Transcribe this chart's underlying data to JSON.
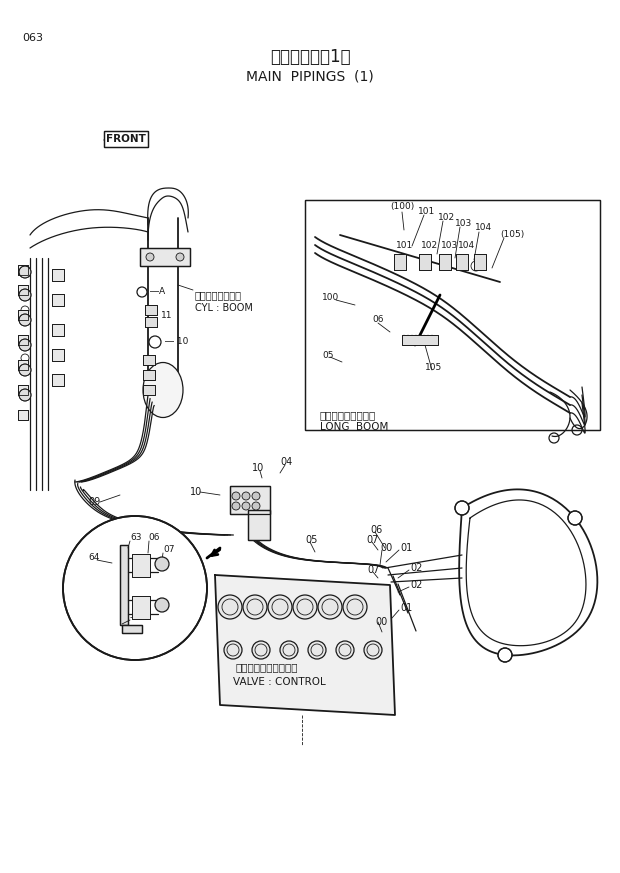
{
  "page_number": "063",
  "title_japanese": "メイン配管（1）",
  "title_english": "MAIN  PIPINGS  (1)",
  "front_label": "FRONT",
  "long_boom_japanese": "ロングブーム装着時",
  "long_boom_english": "LONG  BOOM",
  "cyl_boom_japanese": "シリンダ：ブーム",
  "cyl_boom_english": "CYL : BOOM",
  "valve_control_japanese": "バルブ：コントロール",
  "valve_control_english": "VALVE : CONTROL",
  "bg_color": "#ffffff",
  "line_color": "#1a1a1a",
  "fig_width": 6.2,
  "fig_height": 8.73
}
